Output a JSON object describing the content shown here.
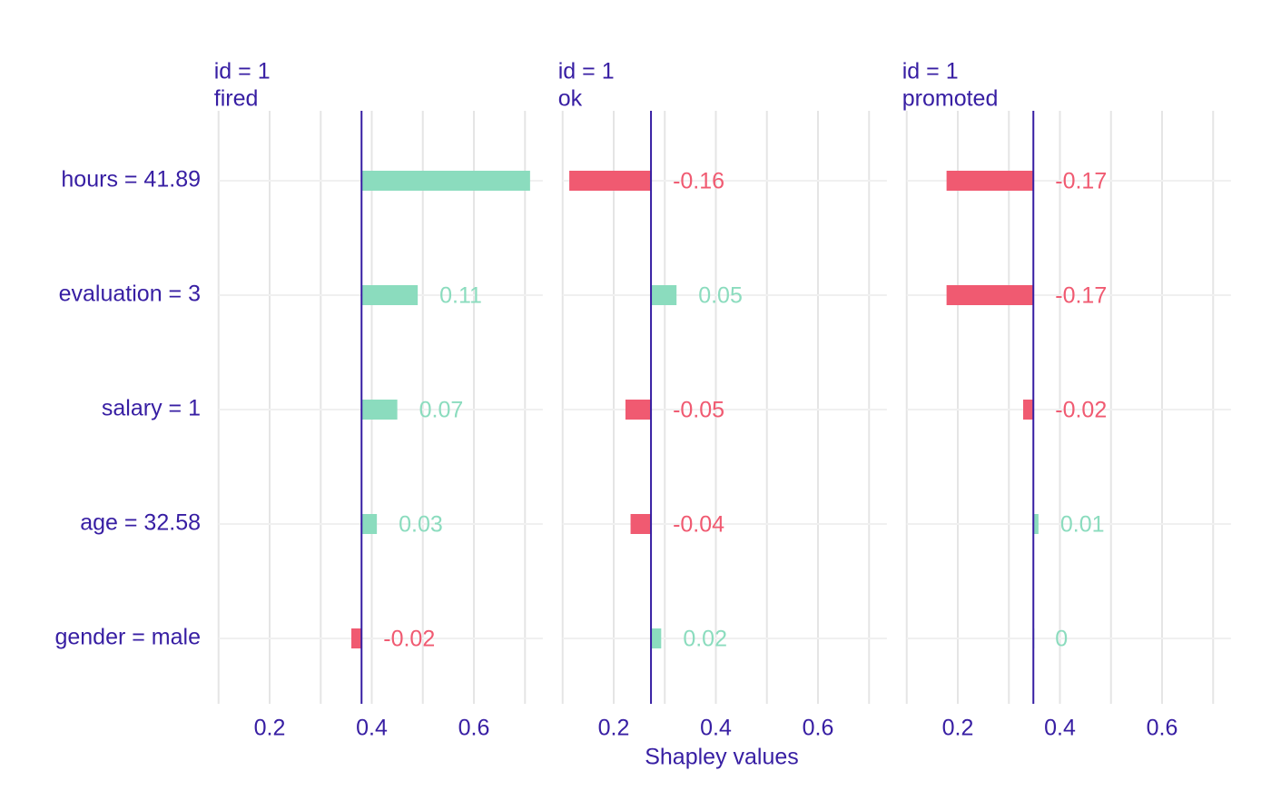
{
  "chart_data": {
    "type": "bar",
    "xlabel": "Shapley values",
    "categories": [
      "hours = 41.89",
      "evaluation = 3",
      "salary = 1",
      "age = 32.58",
      "gender = male"
    ],
    "xlim": [
      0.1,
      0.735
    ],
    "xticks": [
      0.2,
      0.4,
      0.6
    ],
    "minor_grid": [
      0.1,
      0.3,
      0.5,
      0.7
    ],
    "grid": true,
    "positive_color": "#8bdcbe",
    "negative_color": "#f05a71",
    "baseline_color": "#371ea3",
    "facets": [
      {
        "title_lines": [
          "id = 1",
          "fired"
        ],
        "baseline": 0.38,
        "values": [
          0.33,
          0.11,
          0.07,
          0.03,
          -0.02
        ]
      },
      {
        "title_lines": [
          "id = 1",
          "ok"
        ],
        "baseline": 0.273,
        "values": [
          -0.16,
          0.05,
          -0.05,
          -0.04,
          0.02
        ]
      },
      {
        "title_lines": [
          "id = 1",
          "promoted"
        ],
        "baseline": 0.348,
        "values": [
          -0.17,
          -0.17,
          -0.02,
          0.01,
          0
        ]
      }
    ]
  }
}
